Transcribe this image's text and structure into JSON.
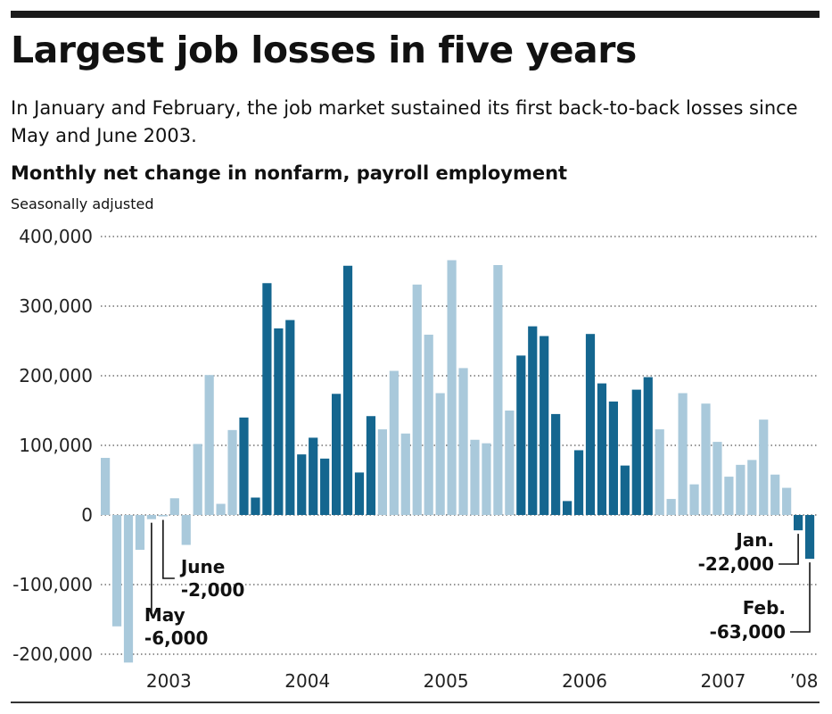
{
  "title": "Largest job losses in five years",
  "subtitle": "In January and February, the job market sustained its first back-to-back losses since May and June 2003.",
  "chart_data": {
    "type": "bar",
    "title": "Monthly net change in nonfarm, payroll employment",
    "subtitle": "Seasonally adjusted",
    "xlabel": "",
    "ylabel": "",
    "ylim": [
      -200000,
      400000
    ],
    "yticks": [
      400000,
      300000,
      200000,
      100000,
      0,
      -100000,
      -200000
    ],
    "ytick_labels": [
      "400,000",
      "300,000",
      "200,000",
      "100,000",
      "0",
      "-100,000",
      "-200,000"
    ],
    "grid": true,
    "year_labels": [
      "2003",
      "2004",
      "2005",
      "2006",
      "2007",
      "’08"
    ],
    "colors": {
      "light": "#a9c9db",
      "dark": "#14668f"
    },
    "values": [
      82000,
      -160000,
      -212000,
      -50000,
      -6000,
      -2000,
      24000,
      -43000,
      102000,
      201000,
      16000,
      122000,
      140000,
      25000,
      333000,
      268000,
      280000,
      87000,
      111000,
      81000,
      174000,
      358000,
      61000,
      142000,
      123000,
      207000,
      117000,
      331000,
      259000,
      175000,
      366000,
      211000,
      108000,
      103000,
      359000,
      150000,
      229000,
      271000,
      257000,
      145000,
      20000,
      93000,
      260000,
      189000,
      163000,
      71000,
      180000,
      198000,
      123000,
      23000,
      175000,
      44000,
      160000,
      105000,
      55000,
      72000,
      79000,
      137000,
      58000,
      39000,
      -22000,
      -63000
    ],
    "annotations": [
      {
        "label": "June",
        "value": "-2,000"
      },
      {
        "label": "May",
        "value": "-6,000"
      },
      {
        "label": "Jan.",
        "value": "-22,000"
      },
      {
        "label": "Feb.",
        "value": "-63,000"
      }
    ]
  }
}
